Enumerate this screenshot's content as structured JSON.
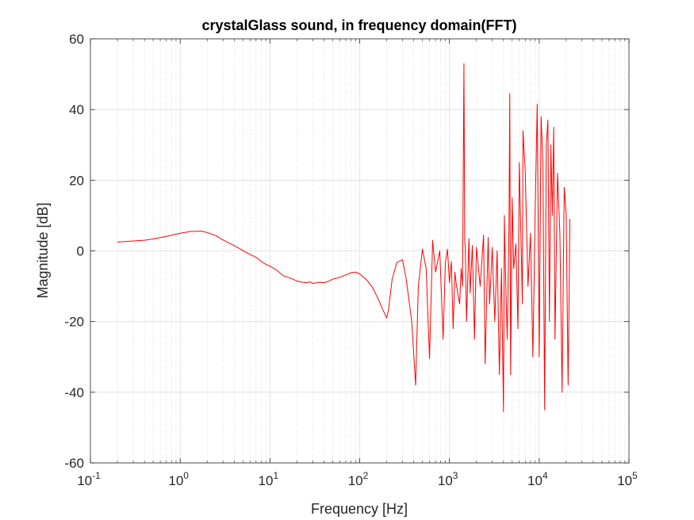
{
  "chart_data": {
    "type": "line",
    "title": "crystalGlass sound, in frequency domain(FFT)",
    "xlabel": "Frequency [Hz]",
    "ylabel": "Magnitude [dB]",
    "xscale": "log",
    "xlim": [
      0.1,
      100000
    ],
    "ylim": [
      -60,
      60
    ],
    "x_ticks": [
      {
        "value": 0.1,
        "base": "10",
        "exp": "-1"
      },
      {
        "value": 1,
        "base": "10",
        "exp": "0"
      },
      {
        "value": 10,
        "base": "10",
        "exp": "1"
      },
      {
        "value": 100,
        "base": "10",
        "exp": "2"
      },
      {
        "value": 1000,
        "base": "10",
        "exp": "3"
      },
      {
        "value": 10000,
        "base": "10",
        "exp": "4"
      },
      {
        "value": 100000,
        "base": "10",
        "exp": "5"
      }
    ],
    "y_ticks": [
      60,
      40,
      20,
      0,
      -20,
      -40,
      -60
    ],
    "grid": true,
    "minor_grid": true,
    "series": [
      {
        "color": "#ff0000",
        "x": [
          0.2,
          0.3,
          0.4,
          0.5,
          0.7,
          1.0,
          1.3,
          1.7,
          2.0,
          2.5,
          3.0,
          4.0,
          5.0,
          6.0,
          7.0,
          8.0,
          9.0,
          10,
          12,
          14,
          16,
          18,
          20,
          22,
          25,
          28,
          30,
          35,
          40,
          45,
          50,
          60,
          70,
          80,
          90,
          100,
          120,
          140,
          160,
          180,
          200,
          210,
          230,
          260,
          300,
          330,
          380,
          420,
          450,
          500,
          550,
          600,
          650,
          700,
          780,
          850,
          900,
          950,
          1000,
          1050,
          1100,
          1150,
          1200,
          1300,
          1350,
          1400,
          1450,
          1480,
          1500,
          1550,
          1650,
          1700,
          1800,
          1900,
          2000,
          2200,
          2400,
          2500,
          2700,
          2800,
          3000,
          3200,
          3400,
          3600,
          3800,
          4000,
          4100,
          4200,
          4400,
          4600,
          4700,
          4800,
          5000,
          5200,
          5500,
          5800,
          6000,
          6500,
          6600,
          7000,
          7500,
          8000,
          8500,
          9000,
          9500,
          10000,
          10500,
          11000,
          11500,
          12000,
          12500,
          13000,
          13500,
          14000,
          14500,
          15000,
          16000,
          17000,
          18000,
          19000,
          20000,
          21000,
          22000
        ],
        "y": [
          2.5,
          2.8,
          3.0,
          3.4,
          4.1,
          5.0,
          5.5,
          5.6,
          5.2,
          4.3,
          3.1,
          1.5,
          0.1,
          -1.0,
          -1.8,
          -3.0,
          -3.8,
          -4.3,
          -5.5,
          -7.0,
          -7.5,
          -8.0,
          -8.5,
          -8.8,
          -9.0,
          -8.8,
          -9.2,
          -8.9,
          -9.0,
          -8.6,
          -8.0,
          -7.5,
          -6.8,
          -6.2,
          -6.0,
          -6.5,
          -8.2,
          -10.5,
          -13.5,
          -16.5,
          -19.0,
          -16.5,
          -8.0,
          -3.2,
          -2.5,
          -8.0,
          -20.0,
          -38.0,
          -10.0,
          0.5,
          -5.0,
          -30.5,
          3.0,
          -6.0,
          0.0,
          -25.0,
          -3.5,
          0.5,
          -9.0,
          -3.0,
          -22.0,
          -6.0,
          -10.0,
          -15.0,
          -5.0,
          -10.0,
          53.0,
          3.0,
          1.0,
          -20.0,
          3.5,
          -12.0,
          1.5,
          -25.0,
          1.0,
          -10.0,
          4.5,
          -32.0,
          3.8,
          -15.0,
          1.0,
          -20.0,
          0.0,
          -35.0,
          -5.0,
          -45.5,
          10.0,
          -5.0,
          -25.0,
          5.0,
          44.5,
          -35.0,
          15.0,
          -5.0,
          2.0,
          -22.0,
          25.0,
          -15.0,
          34.0,
          22.0,
          -10.0,
          5.0,
          -30.0,
          10.0,
          41.5,
          -30.0,
          38.0,
          25.0,
          -45.0,
          30.0,
          37.0,
          -20.0,
          30.0,
          10.0,
          35.0,
          -25.0,
          22.0,
          5.0,
          -40.0,
          18.0,
          10.0,
          -38.0,
          9.0
        ]
      }
    ]
  }
}
